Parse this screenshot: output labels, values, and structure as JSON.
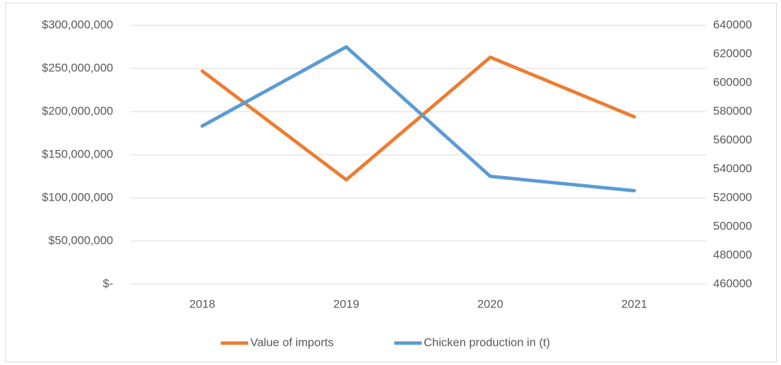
{
  "chart_data": {
    "type": "line",
    "categories": [
      "2018",
      "2019",
      "2020",
      "2021"
    ],
    "series": [
      {
        "name": "Value of imports",
        "color": "#ed7d31",
        "values": [
          247000000,
          121000000,
          263000000,
          194000000
        ]
      },
      {
        "name": "Chicken production in (t)",
        "color": "#5b9bd5",
        "axis": "y2",
        "values": [
          570000,
          625000,
          535000,
          525000
        ]
      }
    ],
    "ylim": [
      0,
      300000000
    ],
    "yticks": [
      {
        "value": 0,
        "label": "$-"
      },
      {
        "value": 50000000,
        "label": "$50,000,000"
      },
      {
        "value": 100000000,
        "label": "$100,000,000"
      },
      {
        "value": 150000000,
        "label": "$150,000,000"
      },
      {
        "value": 200000000,
        "label": "$200,000,000"
      },
      {
        "value": 250000000,
        "label": "$250,000,000"
      },
      {
        "value": 300000000,
        "label": "$300,000,000"
      }
    ],
    "y2lim": [
      460000,
      640000
    ],
    "y2ticks": [
      460000,
      480000,
      500000,
      520000,
      540000,
      560000,
      580000,
      600000,
      620000,
      640000
    ],
    "grid": true,
    "legend": "bottom"
  }
}
